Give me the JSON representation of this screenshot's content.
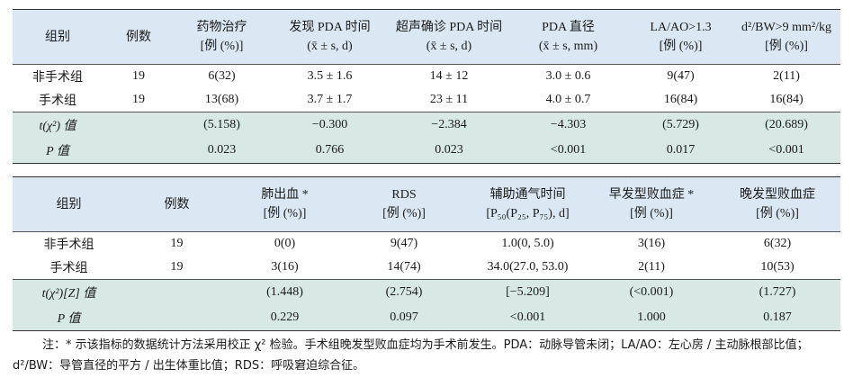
{
  "table1": {
    "header": [
      [
        "组别"
      ],
      [
        "例数"
      ],
      [
        "药物治疗",
        "[例 (%)]"
      ],
      [
        "发现 PDA 时间",
        "(x̄ ± s, d)"
      ],
      [
        "超声确诊 PDA 时间",
        "(x̄ ± s, d)"
      ],
      [
        "PDA 直径",
        "(x̄ ± s, mm)"
      ],
      [
        "LA/AO>1.3",
        "[例 (%)]"
      ],
      [
        "d²/BW>9 mm²/kg",
        "[例 (%)]"
      ]
    ],
    "rows": [
      [
        "非手术组",
        "19",
        "6(32)",
        "3.5 ± 1.6",
        "14 ± 12",
        "3.0 ± 0.6",
        "9(47)",
        "2(11)"
      ],
      [
        "手术组",
        "19",
        "13(68)",
        "3.7 ± 1.7",
        "23 ± 11",
        "4.0 ± 0.7",
        "16(84)",
        "16(84)"
      ]
    ],
    "stats": [
      [
        "t(χ²) 值",
        "",
        "(5.158)",
        "−0.300",
        "−2.384",
        "−4.303",
        "(5.729)",
        "(20.689)"
      ],
      [
        "P 值",
        "",
        "0.023",
        "0.766",
        "0.023",
        "<0.001",
        "0.017",
        "<0.001"
      ]
    ]
  },
  "table2": {
    "header": [
      [
        "组别"
      ],
      [
        "例数"
      ],
      [
        "肺出血 *",
        "[例 (%)]"
      ],
      [
        "RDS",
        "[例 (%)]"
      ],
      [
        "辅助通气时间",
        "[P₅₀(P₂₅, P₇₅), d]"
      ],
      [
        "早发型败血症 *",
        "[例 (%)]"
      ],
      [
        "晚发型败血症",
        "[例 (%)]"
      ]
    ],
    "rows": [
      [
        "非手术组",
        "19",
        "0(0)",
        "9(47)",
        "1.0(0, 5.0)",
        "3(16)",
        "6(32)"
      ],
      [
        "手术组",
        "19",
        "3(16)",
        "14(74)",
        "34.0(27.0, 53.0)",
        "2(11)",
        "10(53)"
      ]
    ],
    "stats": [
      [
        "t(χ²)[Z] 值",
        "",
        "(1.448)",
        "(2.754)",
        "[−5.209]",
        "(<0.001)",
        "(1.727)"
      ],
      [
        "P 值",
        "",
        "0.229",
        "0.097",
        "<0.001",
        "1.000",
        "0.187"
      ]
    ]
  },
  "note": "注：* 示该指标的数据统计方法采用校正 χ² 检验。手术组晚发型败血症均为手术前发生。PDA：动脉导管未闭；LA/AO：左心房 / 主动脉根部比值；d²/BW：导管直径的平方 / 出生体重比值；RDS：呼吸窘迫综合征。"
}
